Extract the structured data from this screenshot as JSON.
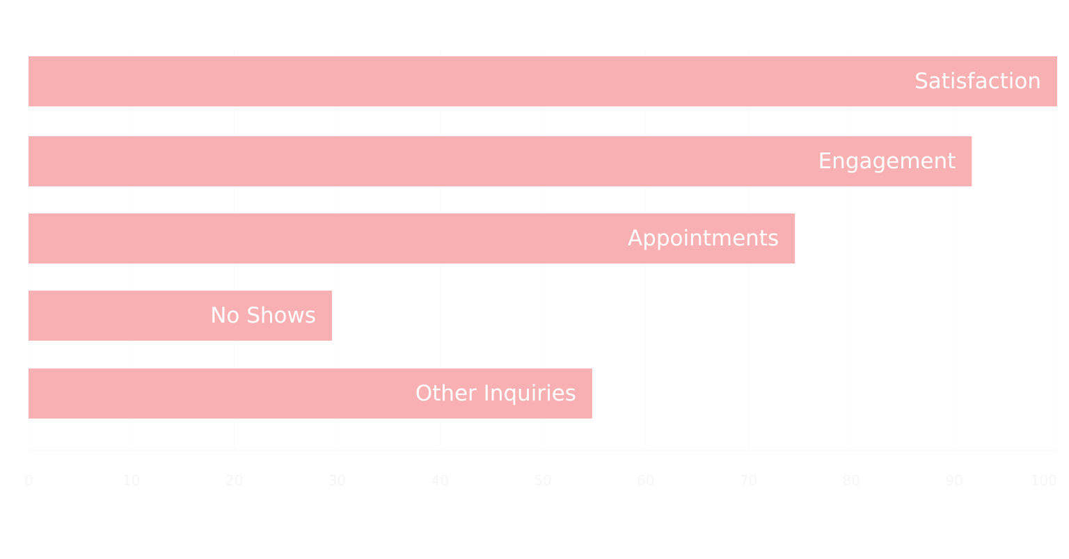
{
  "chart_data": {
    "type": "bar",
    "orientation": "horizontal",
    "categories": [
      "Satisfaction",
      "Engagement",
      "Appointments",
      "No Shows",
      "Other Inquiries"
    ],
    "values": [
      100,
      91.7,
      74.5,
      29.5,
      54.8
    ],
    "xlim": [
      0,
      100
    ],
    "xticks": [
      0,
      10,
      20,
      30,
      40,
      50,
      60,
      70,
      80,
      90,
      100
    ],
    "bar_color": "#f8b0b2",
    "label_color": "#ffffff",
    "tick_color": "#f6f6f6",
    "grid": true,
    "legend": "none"
  }
}
